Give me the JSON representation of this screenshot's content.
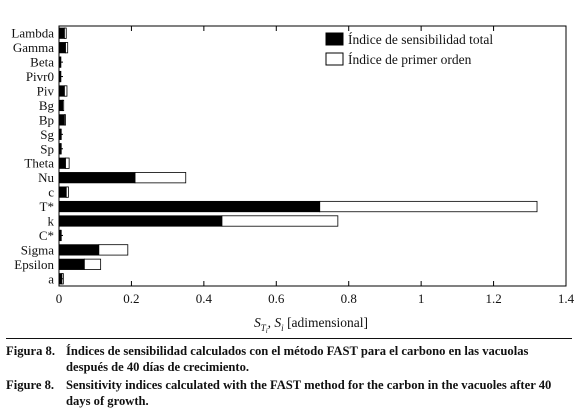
{
  "chart_data": {
    "type": "bar",
    "orientation": "horizontal",
    "stacked": true,
    "categories": [
      "Lambda",
      "Gamma",
      "Beta",
      "Pivr0",
      "Piv",
      "Bg",
      "Bp",
      "Sg",
      "Sp",
      "Theta",
      "Nu",
      "c",
      "T*",
      "k",
      "C*",
      "Sigma",
      "Epsilon",
      "a"
    ],
    "series": [
      {
        "name": "Índice de sensibilidad total",
        "values": [
          0.015,
          0.018,
          0.003,
          0.003,
          0.015,
          0.01,
          0.015,
          0.004,
          0.004,
          0.018,
          0.21,
          0.02,
          0.72,
          0.45,
          0.004,
          0.11,
          0.07,
          0.008
        ],
        "color": "#000000"
      },
      {
        "name": "Índice de primer orden",
        "values": [
          0.005,
          0.006,
          0.002,
          0.002,
          0.007,
          0.003,
          0.003,
          0.002,
          0.002,
          0.01,
          0.14,
          0.006,
          0.6,
          0.32,
          0.002,
          0.08,
          0.045,
          0.004
        ],
        "color": "#ffffff"
      }
    ],
    "xlim": [
      0,
      1.4
    ],
    "x_ticks": [
      "0",
      "0.2",
      "0.4",
      "0.6",
      "0.8",
      "1",
      "1.2",
      "1.4"
    ],
    "xlabel": "S_Ti , S_i [adimensional]",
    "ylabel": "",
    "title": "",
    "legend_position": "top-right",
    "grid": false
  },
  "captions": [
    {
      "label": "Figura 8.",
      "text": "Índices de sensibilidad calculados con el método FAST para el carbono en las vacuolas después de 40 días de crecimiento."
    },
    {
      "label": "Figure 8.",
      "text": "Sensitivity indices calculated with the FAST method for the carbon in the vacuoles after 40 days of growth."
    }
  ]
}
